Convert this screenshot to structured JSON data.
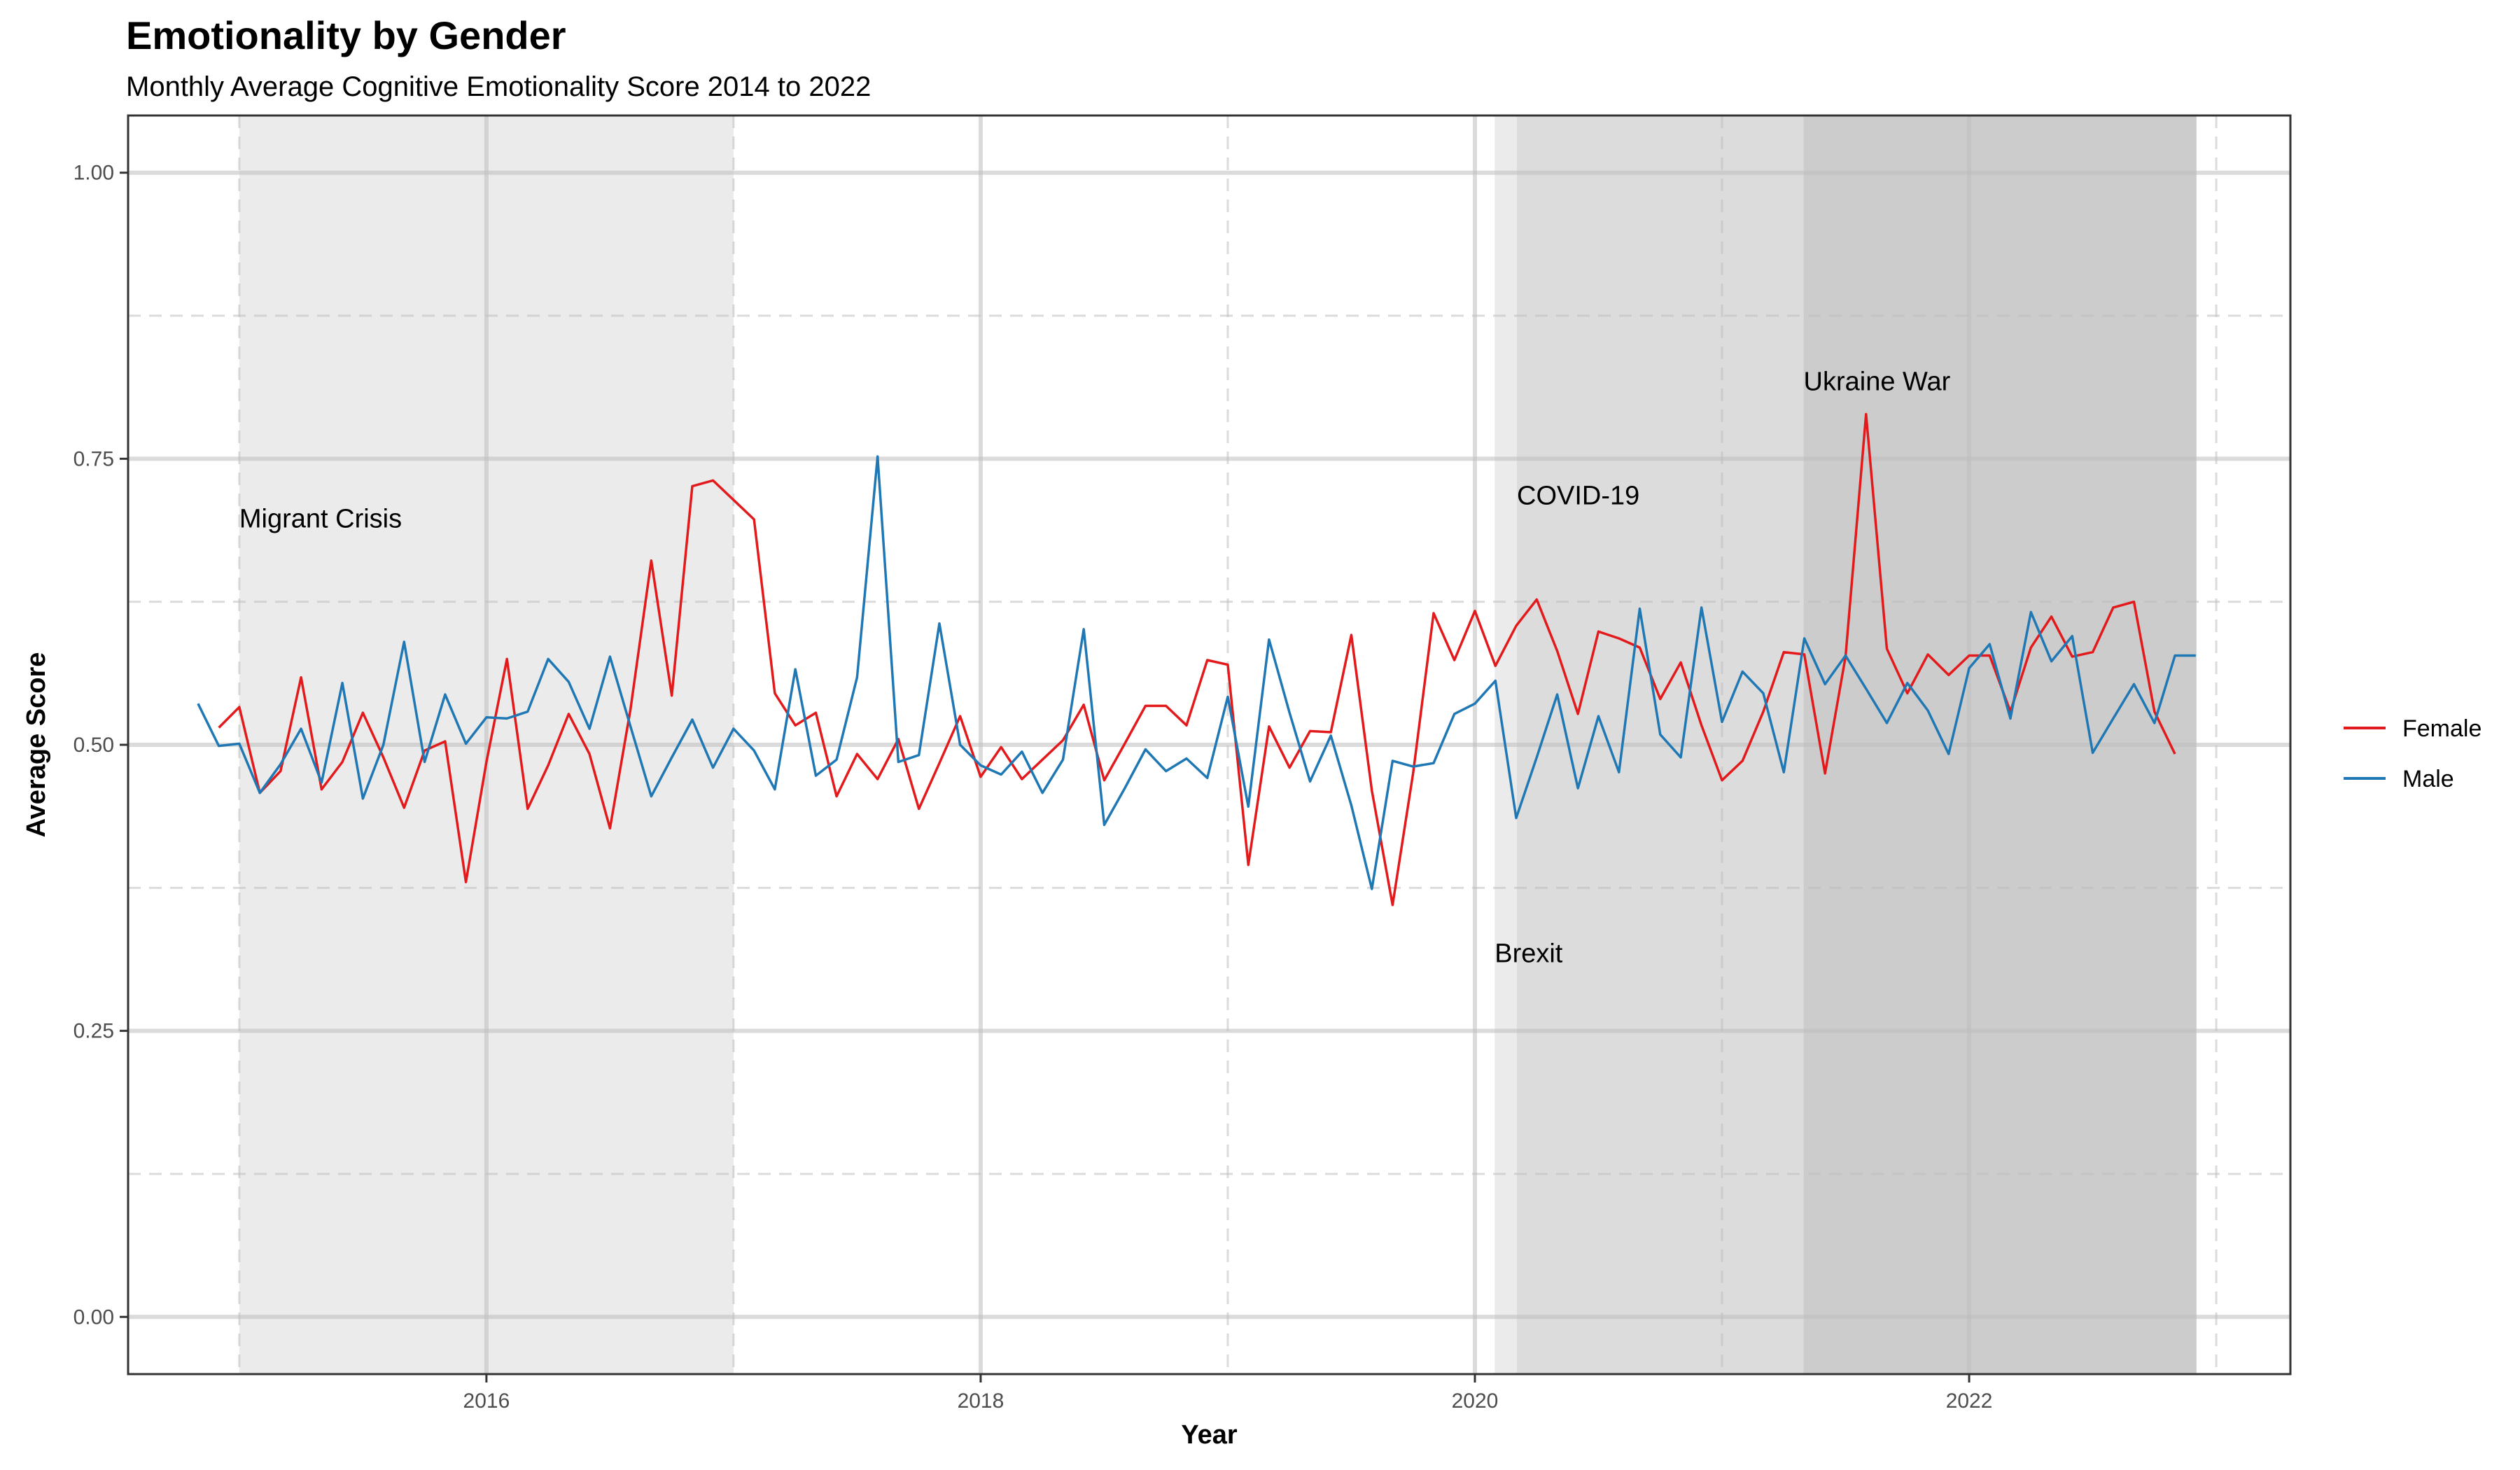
{
  "chart_data": {
    "type": "line",
    "title": "Emotionality by Gender",
    "subtitle": "Monthly Average Cognitive Emotionality Score 2014 to 2022",
    "xlabel": "Year",
    "ylabel": "Average Score",
    "xlim": [
      2014.55,
      2023.3
    ],
    "ylim": [
      -0.05,
      1.05
    ],
    "x_ticks": [
      2016,
      2018,
      2020,
      2022
    ],
    "y_ticks": [
      0.0,
      0.25,
      0.5,
      0.75,
      1.0
    ],
    "y_tick_labels": [
      "0.00",
      "0.25",
      "0.50",
      "0.75",
      "1.00"
    ],
    "grid": true,
    "legend_position": "right",
    "colors": {
      "Female": "#e31a1c",
      "Male": "#1f78b4"
    },
    "shaded_periods": [
      {
        "start": 2015.0,
        "end": 2017.0,
        "fill": "#ebebeb"
      },
      {
        "start": 2020.08,
        "end": 2020.17,
        "fill": "#ebebeb"
      },
      {
        "start": 2020.17,
        "end": 2021.33,
        "fill": "#dcdcdc"
      },
      {
        "start": 2021.33,
        "end": 2022.92,
        "fill": "#cccccc"
      }
    ],
    "annotations": [
      {
        "text": "Migrant Crisis",
        "x": 2015.0,
        "y": 0.69
      },
      {
        "text": "COVID-19",
        "x": 2020.17,
        "y": 0.71
      },
      {
        "text": "Ukraine War",
        "x": 2021.33,
        "y": 0.81
      },
      {
        "text": "Brexit",
        "x": 2020.08,
        "y": 0.31
      }
    ],
    "series": [
      {
        "name": "Female",
        "x": [
          2014.917,
          2015.0,
          2015.083,
          2015.167,
          2015.25,
          2015.333,
          2015.417,
          2015.5,
          2015.583,
          2015.667,
          2015.75,
          2015.833,
          2015.917,
          2016.0,
          2016.083,
          2016.167,
          2016.25,
          2016.333,
          2016.417,
          2016.5,
          2016.583,
          2016.667,
          2016.75,
          2016.833,
          2016.917,
          2017.0,
          2017.083,
          2017.167,
          2017.25,
          2017.333,
          2017.417,
          2017.5,
          2017.583,
          2017.667,
          2017.75,
          2017.833,
          2017.917,
          2018.0,
          2018.083,
          2018.167,
          2018.25,
          2018.333,
          2018.417,
          2018.5,
          2018.583,
          2018.667,
          2018.75,
          2018.833,
          2018.917,
          2019.0,
          2019.083,
          2019.167,
          2019.25,
          2019.333,
          2019.417,
          2019.5,
          2019.583,
          2019.667,
          2019.75,
          2019.833,
          2019.917,
          2020.0,
          2020.083,
          2020.167,
          2020.25,
          2020.333,
          2020.417,
          2020.5,
          2020.583,
          2020.667,
          2020.75,
          2020.833,
          2020.917,
          2021.0,
          2021.083,
          2021.167,
          2021.25,
          2021.333,
          2021.417,
          2021.5,
          2021.583,
          2021.667,
          2021.75,
          2021.833,
          2021.917,
          2022.0,
          2022.083,
          2022.167,
          2022.25,
          2022.333,
          2022.417,
          2022.5,
          2022.583,
          2022.667,
          2022.75,
          2022.833
        ],
        "values": [
          0.515,
          0.533,
          0.458,
          0.477,
          0.559,
          0.461,
          0.485,
          0.528,
          0.489,
          0.445,
          0.495,
          0.503,
          0.38,
          0.485,
          0.575,
          0.444,
          0.482,
          0.527,
          0.492,
          0.427,
          0.531,
          0.661,
          0.543,
          0.726,
          0.731,
          0.714,
          0.697,
          0.545,
          0.517,
          0.528,
          0.455,
          0.492,
          0.47,
          0.505,
          0.444,
          0.484,
          0.525,
          0.472,
          0.498,
          0.47,
          0.487,
          0.504,
          0.535,
          0.469,
          0.501,
          0.534,
          0.534,
          0.517,
          0.574,
          0.57,
          0.395,
          0.516,
          0.48,
          0.512,
          0.511,
          0.596,
          0.46,
          0.36,
          0.475,
          0.615,
          0.574,
          0.617,
          0.569,
          0.604,
          0.627,
          0.582,
          0.527,
          0.599,
          0.593,
          0.585,
          0.54,
          0.572,
          0.517,
          0.469,
          0.486,
          0.529,
          0.581,
          0.579,
          0.475,
          0.577,
          0.789,
          0.584,
          0.545,
          0.579,
          0.561,
          0.578,
          0.578,
          0.529,
          0.585,
          0.612,
          0.577,
          0.581,
          0.62,
          0.625,
          0.529,
          0.492
        ]
      },
      {
        "name": "Male",
        "x": [
          2014.833,
          2014.917,
          2015.0,
          2015.083,
          2015.167,
          2015.25,
          2015.333,
          2015.417,
          2015.5,
          2015.583,
          2015.667,
          2015.75,
          2015.833,
          2015.917,
          2016.0,
          2016.083,
          2016.167,
          2016.25,
          2016.333,
          2016.417,
          2016.5,
          2016.583,
          2016.667,
          2016.75,
          2016.833,
          2016.917,
          2017.0,
          2017.083,
          2017.167,
          2017.25,
          2017.333,
          2017.417,
          2017.5,
          2017.583,
          2017.667,
          2017.75,
          2017.833,
          2017.917,
          2018.0,
          2018.083,
          2018.167,
          2018.25,
          2018.333,
          2018.417,
          2018.5,
          2018.583,
          2018.667,
          2018.75,
          2018.833,
          2018.917,
          2019.0,
          2019.083,
          2019.167,
          2019.25,
          2019.333,
          2019.417,
          2019.5,
          2019.583,
          2019.667,
          2019.75,
          2019.833,
          2019.917,
          2020.0,
          2020.083,
          2020.167,
          2020.25,
          2020.333,
          2020.417,
          2020.5,
          2020.583,
          2020.667,
          2020.75,
          2020.833,
          2020.917,
          2021.0,
          2021.083,
          2021.167,
          2021.25,
          2021.333,
          2021.417,
          2021.5,
          2021.583,
          2021.667,
          2021.75,
          2021.833,
          2021.917,
          2022.0,
          2022.083,
          2022.167,
          2022.25,
          2022.333,
          2022.417,
          2022.5,
          2022.583,
          2022.667,
          2022.75,
          2022.833,
          2022.917
        ],
        "values": [
          0.536,
          0.499,
          0.501,
          0.458,
          0.483,
          0.514,
          0.467,
          0.554,
          0.453,
          0.5,
          0.59,
          0.485,
          0.544,
          0.501,
          0.524,
          0.523,
          0.529,
          0.575,
          0.555,
          0.514,
          0.577,
          0.516,
          0.455,
          0.489,
          0.522,
          0.48,
          0.514,
          0.495,
          0.461,
          0.566,
          0.473,
          0.487,
          0.559,
          0.752,
          0.485,
          0.491,
          0.606,
          0.5,
          0.482,
          0.474,
          0.494,
          0.458,
          0.487,
          0.601,
          0.43,
          0.462,
          0.496,
          0.477,
          0.488,
          0.471,
          0.542,
          0.446,
          0.592,
          0.528,
          0.468,
          0.508,
          0.447,
          0.374,
          0.486,
          0.481,
          0.484,
          0.527,
          0.536,
          0.556,
          0.436,
          0.489,
          0.544,
          0.462,
          0.525,
          0.476,
          0.619,
          0.509,
          0.489,
          0.62,
          0.52,
          0.564,
          0.545,
          0.476,
          0.593,
          0.553,
          0.578,
          0.549,
          0.519,
          0.554,
          0.53,
          0.492,
          0.567,
          0.588,
          0.523,
          0.616,
          0.573,
          0.595,
          0.493,
          0.523,
          0.553,
          0.519,
          0.578,
          0.578
        ]
      }
    ]
  }
}
